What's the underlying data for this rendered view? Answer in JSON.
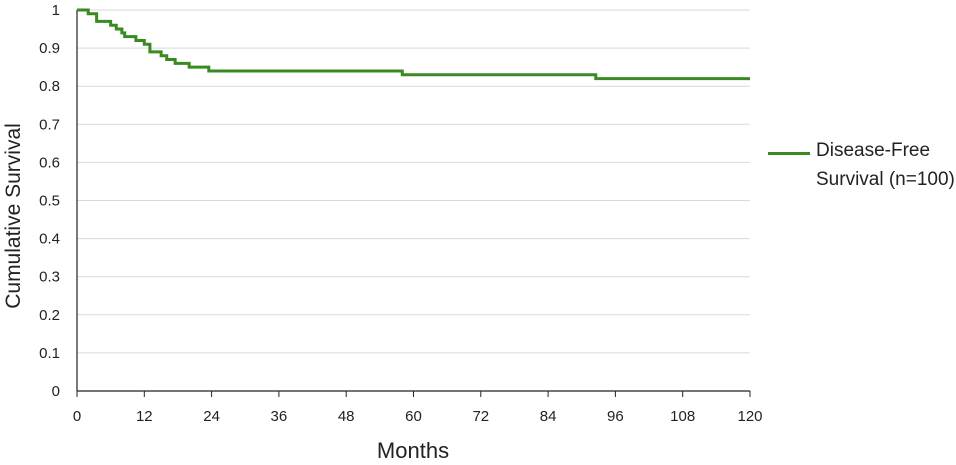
{
  "chart_data": {
    "type": "line",
    "title": "",
    "xlabel": "Months",
    "ylabel": "Cumulative Survival",
    "xlim": [
      0,
      120
    ],
    "ylim": [
      0,
      1
    ],
    "x_ticks": [
      0,
      12,
      24,
      36,
      48,
      60,
      72,
      84,
      96,
      108,
      120
    ],
    "y_ticks": [
      "0",
      "0.1",
      "0.2",
      "0.3",
      "0.4",
      "0.5",
      "0.6",
      "0.7",
      "0.8",
      "0.9",
      "1"
    ],
    "grid": "horizontal",
    "legend_placement": "right",
    "series": [
      {
        "name": "Disease-Free Survival (n=100)",
        "color": "#3a8a22",
        "step": true,
        "points": [
          [
            0,
            1.0
          ],
          [
            2,
            0.99
          ],
          [
            3.5,
            0.97
          ],
          [
            6,
            0.96
          ],
          [
            7,
            0.95
          ],
          [
            8,
            0.94
          ],
          [
            8.5,
            0.93
          ],
          [
            10.5,
            0.92
          ],
          [
            12,
            0.91
          ],
          [
            13,
            0.89
          ],
          [
            15,
            0.88
          ],
          [
            16,
            0.87
          ],
          [
            17.5,
            0.86
          ],
          [
            20,
            0.85
          ],
          [
            23.5,
            0.84
          ],
          [
            58,
            0.83
          ],
          [
            92.5,
            0.82
          ],
          [
            120,
            0.82
          ]
        ]
      }
    ]
  }
}
